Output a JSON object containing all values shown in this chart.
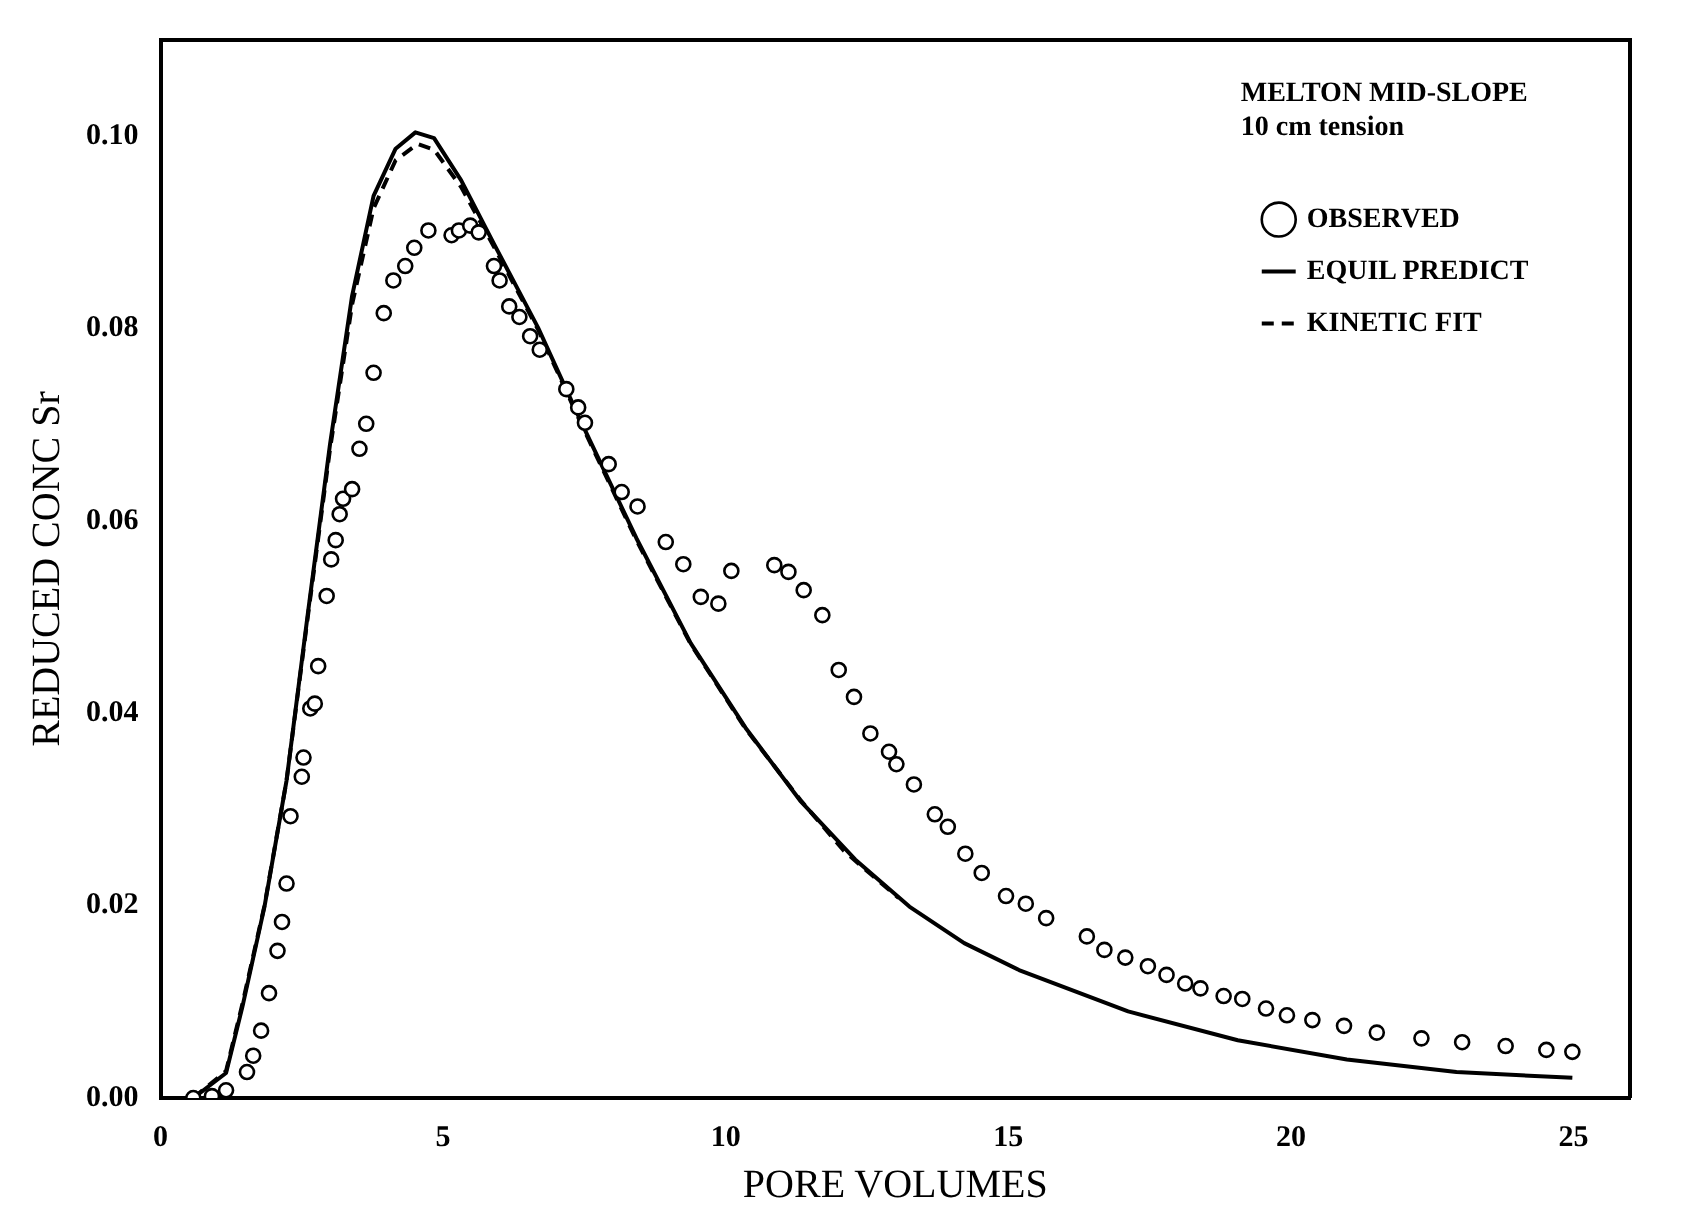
{
  "chart_data": {
    "type": "line",
    "xlabel": "PORE VOLUMES",
    "ylabel": "REDUCED CONC Sr",
    "legend_title": "MELTON MID-SLOPE",
    "annotations": [
      "10 cm tension"
    ],
    "xlim": [
      0,
      26
    ],
    "xticks": [
      0,
      5,
      10,
      15,
      20,
      25
    ],
    "ylim": [
      0,
      0.11
    ],
    "yticks": [
      {
        "value": 0,
        "label": "0.00"
      },
      0.02,
      0.04,
      0.06,
      0.08,
      {
        "value": 0.1,
        "label": "0.10"
      }
    ],
    "grid": false,
    "legend": "top right",
    "series": [
      {
        "name": "OBSERVED",
        "type": "scatter",
        "marker": "circle",
        "color": "#000000",
        "x": [
          0.58,
          0.91,
          1.16,
          1.53,
          1.64,
          1.78,
          1.92,
          2.07,
          2.15,
          2.23,
          2.3,
          2.5,
          2.53,
          2.65,
          2.73,
          2.79,
          2.94,
          3.02,
          3.1,
          3.17,
          3.23,
          3.39,
          3.52,
          3.64,
          3.77,
          3.95,
          4.12,
          4.33,
          4.49,
          4.74,
          5.15,
          5.28,
          5.48,
          5.63,
          5.9,
          6.0,
          6.17,
          6.35,
          6.54,
          6.71,
          7.18,
          7.39,
          7.51,
          7.93,
          8.16,
          8.44,
          8.94,
          9.25,
          9.56,
          9.87,
          10.1,
          10.86,
          11.11,
          11.38,
          11.71,
          12.0,
          12.27,
          12.56,
          12.89,
          13.02,
          13.33,
          13.7,
          13.93,
          14.24,
          14.53,
          14.96,
          15.31,
          15.67,
          16.39,
          16.7,
          17.07,
          17.47,
          17.8,
          18.13,
          18.4,
          18.81,
          19.14,
          19.56,
          19.93,
          20.38,
          20.94,
          21.52,
          22.31,
          23.03,
          23.8,
          24.52,
          24.98
        ],
        "values": [
          0.0,
          0.0002,
          0.0008,
          0.0027,
          0.0044,
          0.007,
          0.0109,
          0.0153,
          0.0183,
          0.0223,
          0.0293,
          0.0334,
          0.0354,
          0.0405,
          0.041,
          0.0449,
          0.0522,
          0.056,
          0.058,
          0.0607,
          0.0623,
          0.0633,
          0.0675,
          0.0701,
          0.0754,
          0.0816,
          0.085,
          0.0865,
          0.0884,
          0.0902,
          0.0897,
          0.0902,
          0.0907,
          0.09,
          0.0865,
          0.085,
          0.0823,
          0.0812,
          0.0792,
          0.0778,
          0.0737,
          0.0718,
          0.0702,
          0.0659,
          0.063,
          0.0615,
          0.0578,
          0.0555,
          0.0521,
          0.0514,
          0.0548,
          0.0554,
          0.0547,
          0.0528,
          0.0502,
          0.0445,
          0.0417,
          0.0379,
          0.036,
          0.0347,
          0.0326,
          0.0295,
          0.0282,
          0.0254,
          0.0234,
          0.021,
          0.0202,
          0.0187,
          0.0168,
          0.0154,
          0.0146,
          0.0137,
          0.0128,
          0.0119,
          0.0114,
          0.0106,
          0.0103,
          0.0093,
          0.0086,
          0.0081,
          0.0075,
          0.0068,
          0.0062,
          0.0058,
          0.0054,
          0.005,
          0.0048
        ]
      },
      {
        "name": "EQUIL PREDICT",
        "marker": "none",
        "line_style": "solid",
        "color": "#000000",
        "x": [
          0.58,
          1.16,
          1.45,
          1.84,
          2.23,
          2.61,
          3.0,
          3.39,
          3.77,
          4.16,
          4.51,
          4.84,
          5.32,
          5.9,
          6.68,
          7.45,
          8.42,
          9.38,
          10.35,
          11.32,
          12.29,
          13.25,
          14.22,
          15.19,
          17.12,
          19.06,
          20.99,
          22.93,
          24.98
        ],
        "values": [
          0.0,
          0.0026,
          0.0095,
          0.0199,
          0.033,
          0.0505,
          0.068,
          0.0834,
          0.0938,
          0.0987,
          0.1004,
          0.0998,
          0.0954,
          0.0888,
          0.0801,
          0.0702,
          0.0582,
          0.0473,
          0.0385,
          0.0309,
          0.0248,
          0.0199,
          0.0161,
          0.0133,
          0.009,
          0.006,
          0.004,
          0.0027,
          0.0021
        ]
      },
      {
        "name": "KINETIC FIT",
        "marker": "none",
        "line_style": "dashed",
        "color": "#000000",
        "x": [
          0.58,
          1.16,
          1.45,
          1.84,
          2.23,
          2.61,
          3.0,
          3.39,
          3.77,
          4.16,
          4.55,
          4.84,
          5.32,
          5.9,
          6.68,
          7.45,
          8.42,
          9.38,
          10.35,
          11.32,
          12.09,
          12.58,
          13.06
        ],
        "values": [
          0.0,
          0.0028,
          0.0098,
          0.02,
          0.033,
          0.0502,
          0.0675,
          0.0825,
          0.0925,
          0.0975,
          0.0992,
          0.0986,
          0.0947,
          0.0885,
          0.0799,
          0.07,
          0.058,
          0.0472,
          0.0384,
          0.031,
          0.0257,
          0.0232,
          0.0208
        ]
      }
    ]
  }
}
